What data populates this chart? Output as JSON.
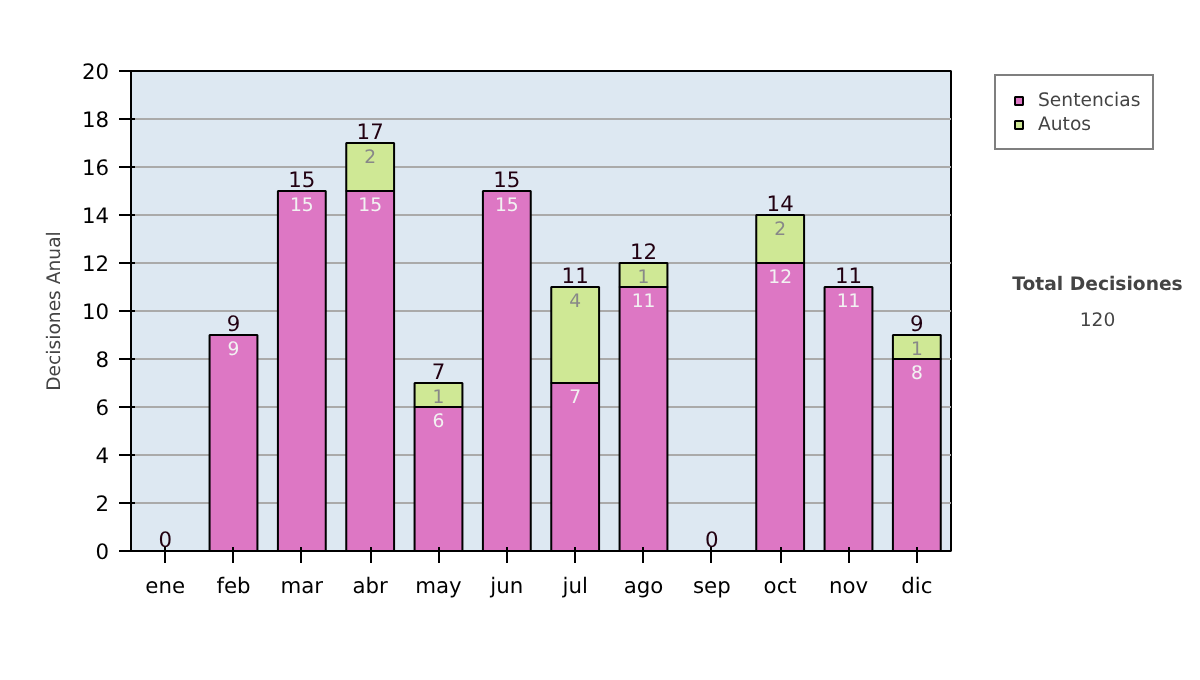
{
  "chart_data": {
    "type": "bar",
    "stacked": true,
    "ylabel": "Decisiones Anual",
    "categories": [
      "ene",
      "feb",
      "mar",
      "abr",
      "may",
      "jun",
      "jul",
      "ago",
      "sep",
      "oct",
      "nov",
      "dic"
    ],
    "series": [
      {
        "name": "Sentencias",
        "color": "#dd77c4",
        "values": [
          0,
          9,
          15,
          15,
          6,
          15,
          7,
          11,
          0,
          12,
          11,
          8
        ],
        "value_labels": [
          null,
          "9",
          "15",
          "15",
          "6",
          "15",
          "7",
          "11",
          null,
          "12",
          "11",
          "8"
        ]
      },
      {
        "name": "Autos",
        "color": "#cfe895",
        "values": [
          0,
          0,
          0,
          2,
          1,
          0,
          4,
          1,
          0,
          2,
          0,
          1
        ],
        "value_labels": [
          null,
          null,
          null,
          "2",
          "1",
          null,
          "4",
          "1",
          null,
          "2",
          null,
          "1"
        ]
      }
    ],
    "totals": [
      "0",
      "9",
      "15",
      "17",
      "7",
      "15",
      "11",
      "12",
      "0",
      "14",
      "11",
      "9"
    ],
    "ylim": [
      0,
      20
    ],
    "yticks": [
      0,
      2,
      4,
      6,
      8,
      10,
      12,
      14,
      16,
      18,
      20
    ],
    "grid": "y",
    "legend": "right",
    "annotations": [
      "Total Decisiones",
      "120"
    ]
  }
}
